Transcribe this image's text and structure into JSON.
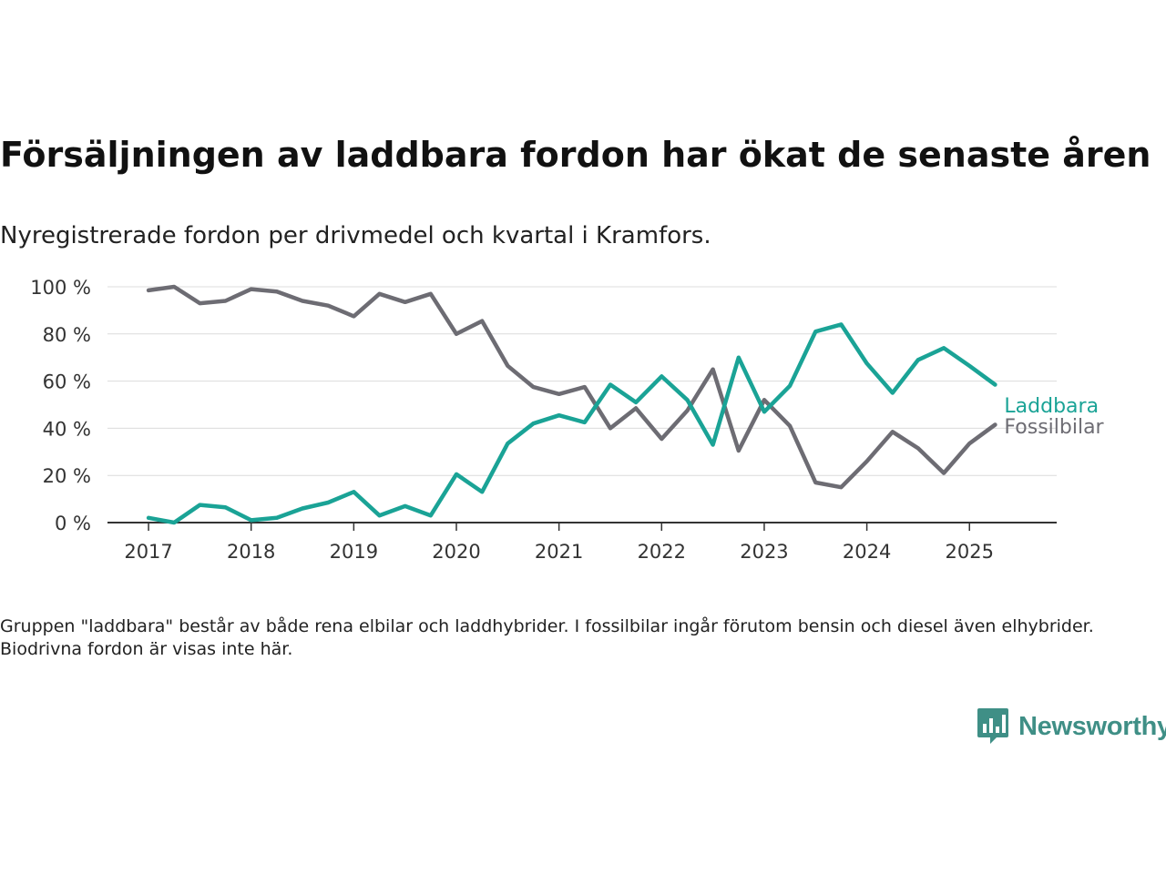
{
  "title": "Försäljningen av laddbara fordon har ökat de senaste åren",
  "subtitle": "Nyregistrerade fordon per drivmedel och kvartal i Kramfors.",
  "footnote": "Gruppen \"laddbara\" består av både rena elbilar och laddhybrider. I fossilbilar ingår förutom bensin och diesel även elhybrider. Biodrivna fordon är visas inte här.",
  "brand": {
    "name": "Newsworthy",
    "color": "#3f8f86",
    "icon": "newsworthy-logo-icon"
  },
  "chart_data": {
    "type": "line",
    "x": [
      2017.0,
      2017.25,
      2017.5,
      2017.75,
      2018.0,
      2018.25,
      2018.5,
      2018.75,
      2019.0,
      2019.25,
      2019.5,
      2019.75,
      2020.0,
      2020.25,
      2020.5,
      2020.75,
      2021.0,
      2021.25,
      2021.5,
      2021.75,
      2022.0,
      2022.25,
      2022.5,
      2022.75,
      2023.0,
      2023.25,
      2023.5,
      2023.75,
      2024.0,
      2024.25,
      2024.5,
      2024.75,
      2025.0,
      2025.25
    ],
    "xlim": [
      2016.6,
      2025.85
    ],
    "ylim": [
      0,
      100
    ],
    "x_ticks": [
      2017,
      2018,
      2019,
      2020,
      2021,
      2022,
      2023,
      2024,
      2025
    ],
    "x_tick_labels": [
      "2017",
      "2018",
      "2019",
      "2020",
      "2021",
      "2022",
      "2023",
      "2024",
      "2025"
    ],
    "y_ticks": [
      0,
      20,
      40,
      60,
      80,
      100
    ],
    "y_tick_labels": [
      "0 %",
      "20 %",
      "40 %",
      "60 %",
      "80 %",
      "100 %"
    ],
    "grid": true,
    "legend": "direct labels at line ends",
    "series": [
      {
        "name": "Laddbara",
        "color": "#1aa396",
        "values": [
          2,
          0,
          7.5,
          6.5,
          1,
          2,
          6,
          8.5,
          13,
          3,
          7,
          3,
          20.5,
          13,
          33.5,
          42,
          45.5,
          42.5,
          58.5,
          51,
          62,
          52,
          33,
          70,
          47,
          58,
          81,
          84,
          67.5,
          55,
          69,
          74,
          66.5,
          58.5
        ]
      },
      {
        "name": "Fossilbilar",
        "color": "#6d6c73",
        "values": [
          98.5,
          100,
          93,
          94,
          99,
          98,
          94,
          92,
          87.5,
          97,
          93.5,
          97,
          80,
          85.5,
          66.5,
          57.5,
          54.5,
          57.5,
          40,
          48.5,
          35.5,
          47.5,
          65,
          30.5,
          52,
          41,
          17,
          15,
          26,
          38.5,
          31.5,
          21,
          33.5,
          41.5
        ]
      }
    ]
  }
}
